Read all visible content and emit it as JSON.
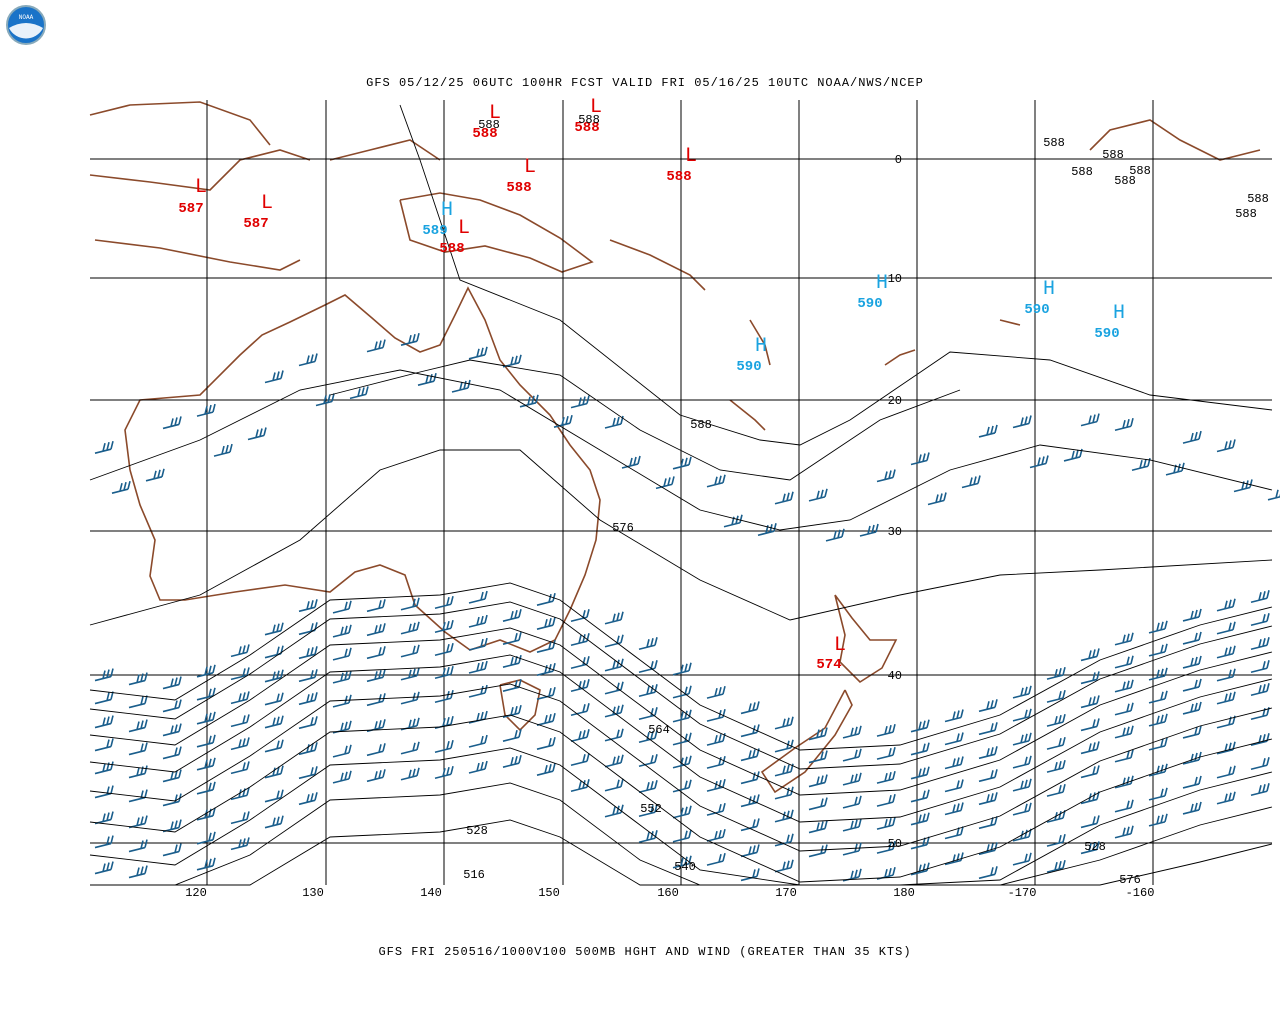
{
  "logo_text": "NOAA",
  "header": {
    "title": "GFS 05/12/25 06UTC 100HR FCST VALID FRI 05/16/25 10UTC NOAA/NWS/NCEP",
    "caption": "GFS FRI 250516/1000V100 500MB HGHT AND WIND (GREATER THAN 35 KTS)"
  },
  "longitude_labels": [
    120,
    130,
    140,
    150,
    160,
    170,
    180,
    -170,
    -160
  ],
  "latitude_labels": [
    0,
    10,
    20,
    30,
    40,
    50
  ],
  "pressure_centers": [
    {
      "symbol": "L",
      "value": 587
    },
    {
      "symbol": "L",
      "value": 587
    },
    {
      "symbol": "H",
      "value": 589
    },
    {
      "symbol": "L",
      "value": 588
    },
    {
      "symbol": "L",
      "value": 588
    },
    {
      "symbol": "L",
      "value": 588
    },
    {
      "symbol": "L",
      "value": 588
    },
    {
      "symbol": "L",
      "value": 588
    },
    {
      "symbol": "H",
      "value": 590
    },
    {
      "symbol": "H",
      "value": 590
    },
    {
      "symbol": "H",
      "value": 590
    },
    {
      "symbol": "H",
      "value": 590
    },
    {
      "symbol": "L",
      "value": 574
    }
  ],
  "contour_labels": [
    588,
    588,
    588,
    588,
    588,
    588,
    588,
    588,
    588,
    588,
    576,
    564,
    552,
    540,
    528,
    528,
    516,
    576
  ]
}
